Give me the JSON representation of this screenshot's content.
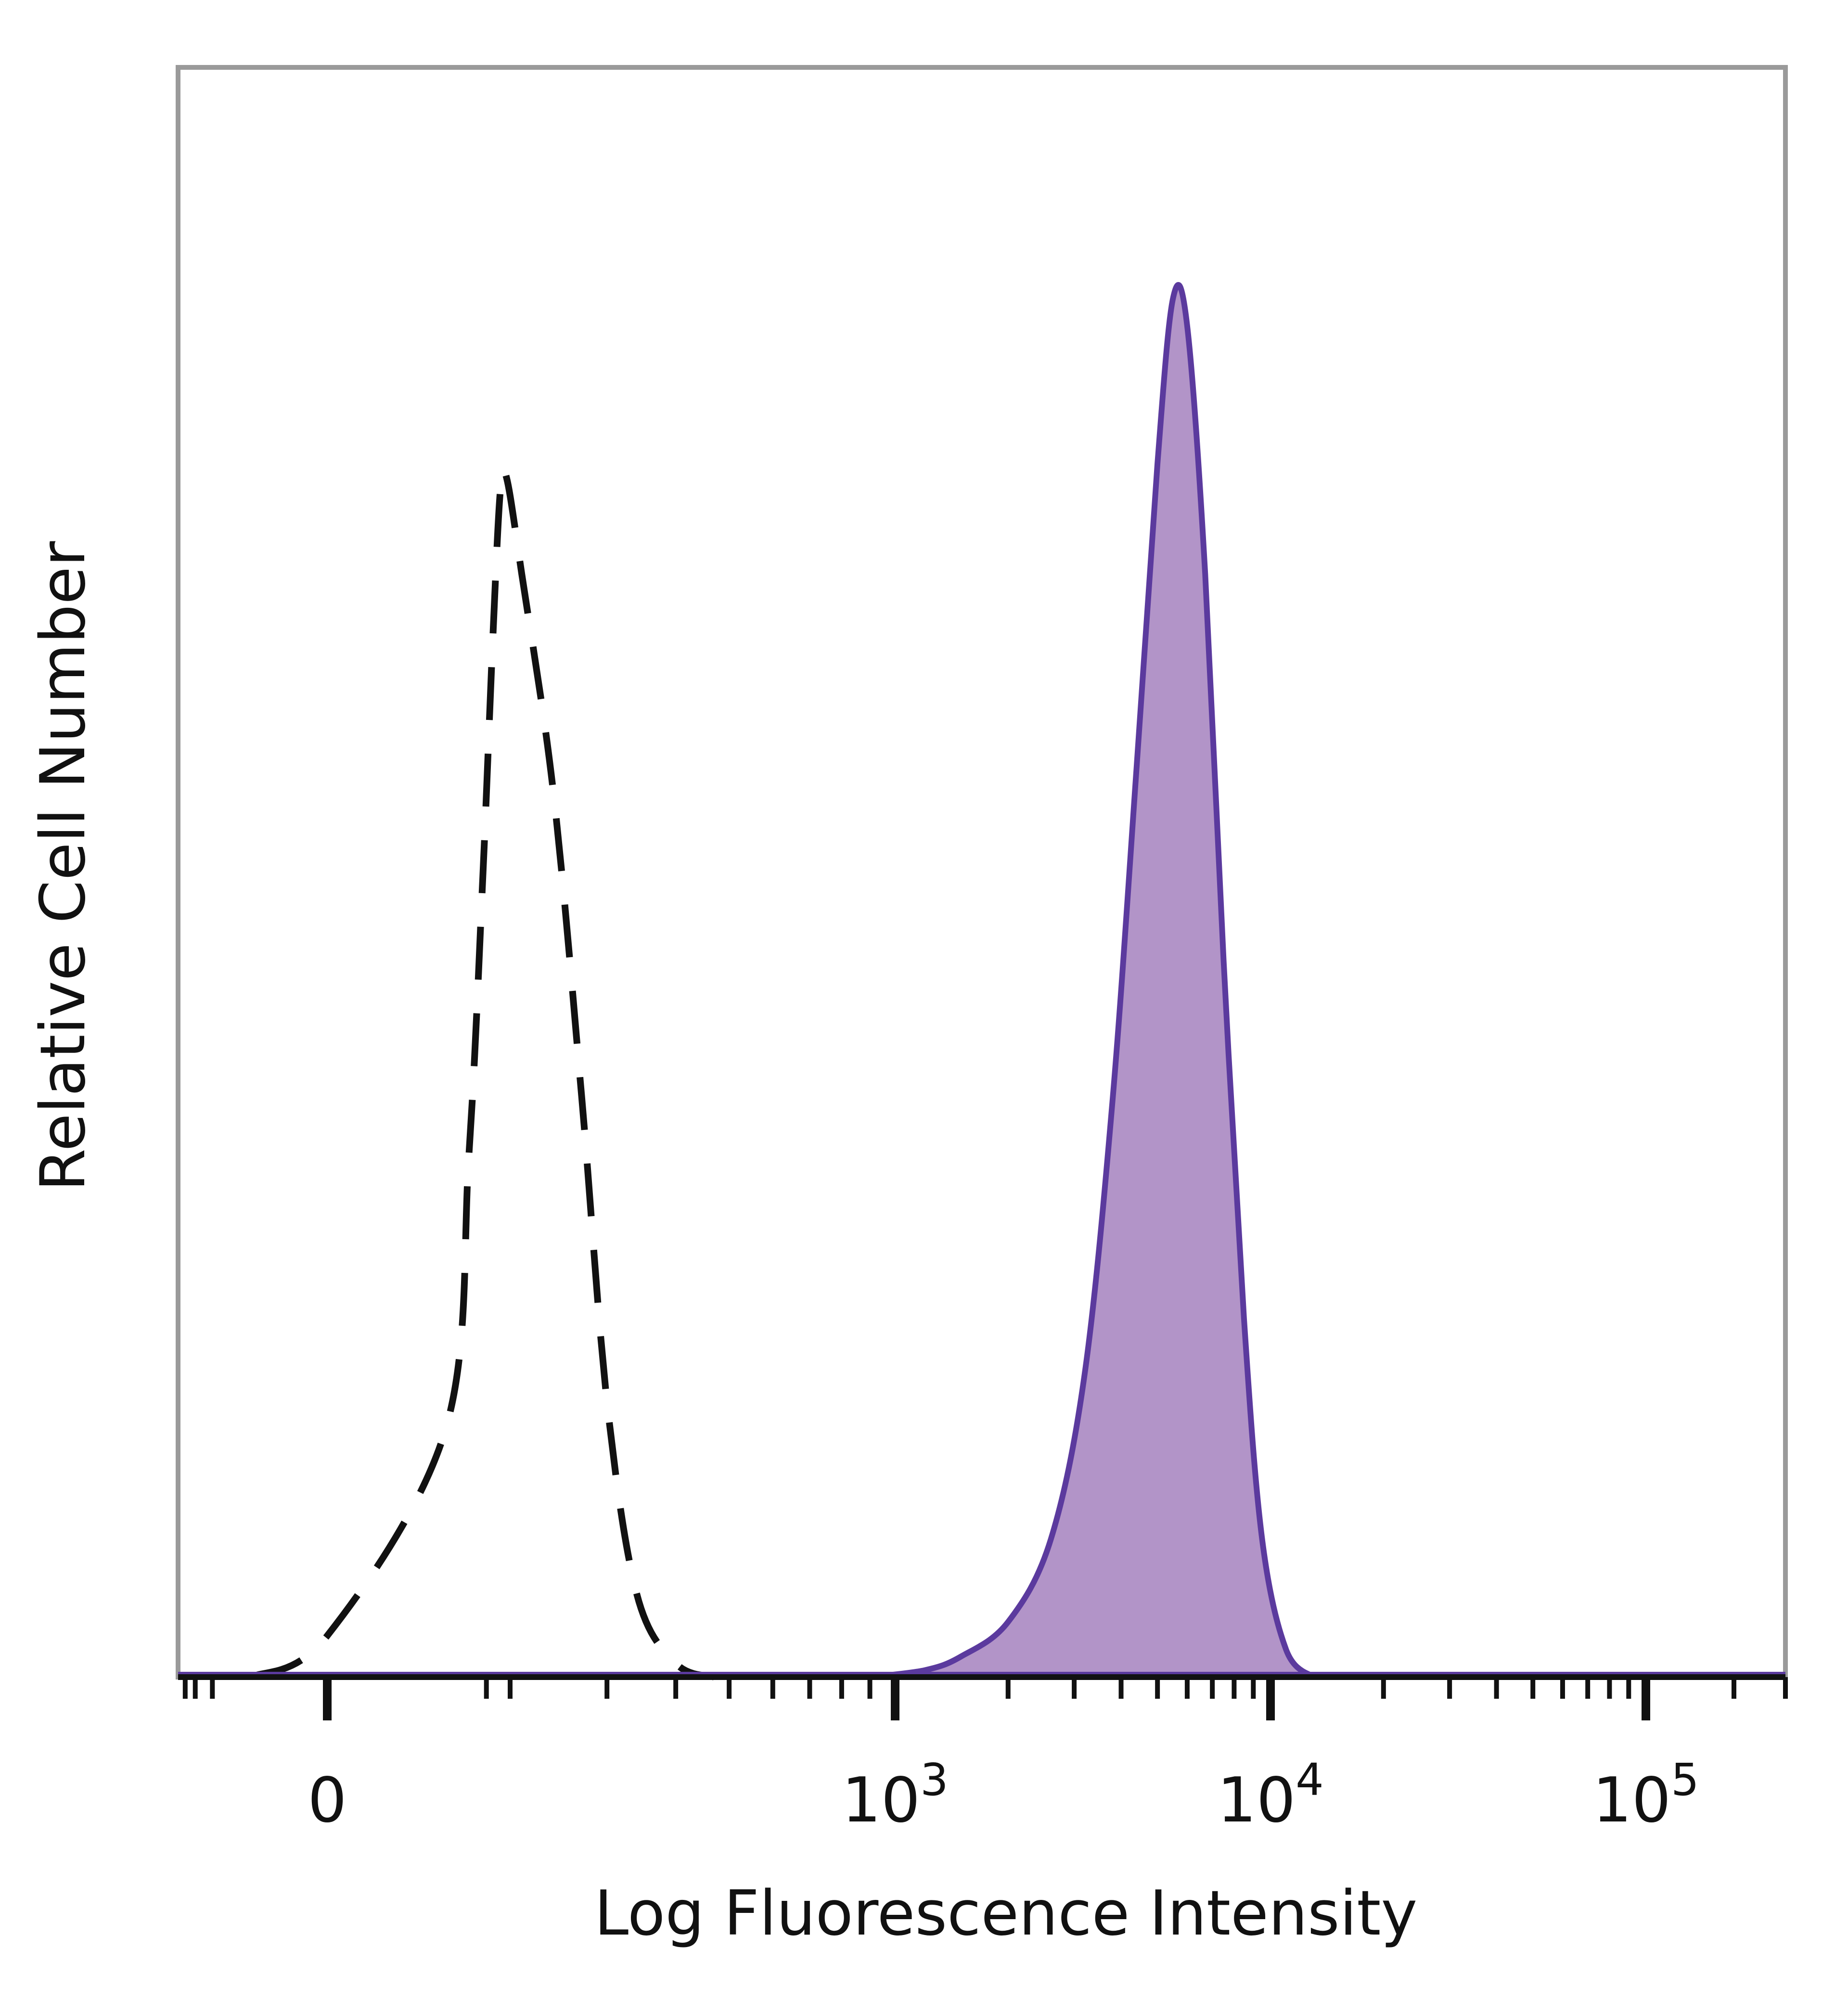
{
  "chart_data": {
    "type": "histogram",
    "title": "",
    "xlabel": "Log Fluorescence Intensity",
    "ylabel": "Relative Cell Number",
    "x_scale": "biexponential (log with linear region around 0)",
    "y_range": [
      0,
      100
    ],
    "grid": false,
    "legend": "none",
    "x_ticks": [
      {
        "value": 0,
        "label": "0",
        "base": "",
        "exp": ""
      },
      {
        "value": 1000,
        "label": "10^3",
        "base": "10",
        "exp": "3"
      },
      {
        "value": 10000,
        "label": "10^4",
        "base": "10",
        "exp": "4"
      },
      {
        "value": 100000,
        "label": "10^5",
        "base": "10",
        "exp": "5"
      }
    ],
    "series": [
      {
        "style": "dashed",
        "color": "#111111",
        "fill": "none",
        "points": [
          {
            "x": -20,
            "y": 0
          },
          {
            "x": 0,
            "y": 3
          },
          {
            "x": 30,
            "y": 18
          },
          {
            "x": 60,
            "y": 38
          },
          {
            "x": 90,
            "y": 58
          },
          {
            "x": 120,
            "y": 75
          },
          {
            "x": 150,
            "y": 86
          },
          {
            "x": 180,
            "y": 87
          },
          {
            "x": 210,
            "y": 80
          },
          {
            "x": 240,
            "y": 64
          },
          {
            "x": 270,
            "y": 42
          },
          {
            "x": 300,
            "y": 20
          },
          {
            "x": 340,
            "y": 6
          },
          {
            "x": 400,
            "y": 1
          },
          {
            "x": 470,
            "y": 0
          }
        ]
      },
      {
        "style": "solid",
        "color": "#5B3A9E",
        "fill": "#B294C8",
        "points": [
          {
            "x": 900,
            "y": 0
          },
          {
            "x": 1200,
            "y": 0.5
          },
          {
            "x": 1500,
            "y": 1.5
          },
          {
            "x": 2000,
            "y": 4
          },
          {
            "x": 2600,
            "y": 10
          },
          {
            "x": 3200,
            "y": 22
          },
          {
            "x": 3800,
            "y": 42
          },
          {
            "x": 4400,
            "y": 66
          },
          {
            "x": 5000,
            "y": 88
          },
          {
            "x": 5500,
            "y": 100
          },
          {
            "x": 6000,
            "y": 98
          },
          {
            "x": 6700,
            "y": 80
          },
          {
            "x": 7500,
            "y": 52
          },
          {
            "x": 8500,
            "y": 26
          },
          {
            "x": 9500,
            "y": 10
          },
          {
            "x": 11000,
            "y": 2
          },
          {
            "x": 13000,
            "y": 0
          }
        ]
      }
    ]
  }
}
